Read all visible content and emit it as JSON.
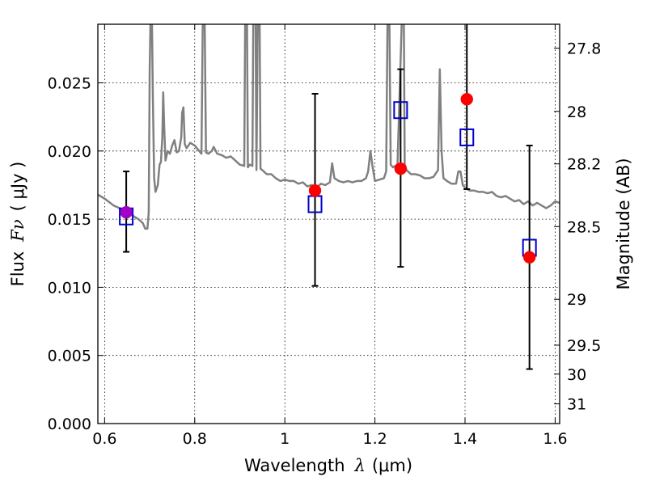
{
  "chart_data": {
    "type": "scatter",
    "title": "",
    "xlabel": "Wavelength",
    "xlabel_symbol": "λ",
    "xlabel_unit": "(μm)",
    "ylabel": "Flux",
    "ylabel_symbol": "Fν",
    "ylabel_unit": "( μJy )",
    "ylabel_right": "Magnitude (AB)",
    "xlim": [
      0.585,
      1.61
    ],
    "ylim": [
      0.0,
      0.0293
    ],
    "grid": true,
    "legend": "none",
    "x_ticks": [
      {
        "value": 0.6,
        "label": "0.6"
      },
      {
        "value": 0.8,
        "label": "0.8"
      },
      {
        "value": 1.0,
        "label": "1"
      },
      {
        "value": 1.2,
        "label": "1.2"
      },
      {
        "value": 1.4,
        "label": "1.4"
      },
      {
        "value": 1.6,
        "label": "1.6"
      }
    ],
    "y_ticks": [
      {
        "value": 0.0,
        "label": "0.000"
      },
      {
        "value": 0.005,
        "label": "0.005"
      },
      {
        "value": 0.01,
        "label": "0.010"
      },
      {
        "value": 0.015,
        "label": "0.015"
      },
      {
        "value": 0.02,
        "label": "0.020"
      },
      {
        "value": 0.025,
        "label": "0.025"
      }
    ],
    "right_ticks": [
      {
        "mag": 27.8,
        "label": "27.8"
      },
      {
        "mag": 28.0,
        "label": "28"
      },
      {
        "mag": 28.2,
        "label": "28.2"
      },
      {
        "mag": 28.5,
        "label": "28.5"
      },
      {
        "mag": 29.0,
        "label": "29"
      },
      {
        "mag": 29.5,
        "label": "29.5"
      },
      {
        "mag": 30.0,
        "label": "30"
      },
      {
        "mag": 31.0,
        "label": "31"
      }
    ],
    "colors": {
      "observed": "#ff0000",
      "model": "#0000cc",
      "spectrum": "#808080",
      "errorbar": "#000000",
      "overlap": "#a000c8"
    },
    "observed": [
      {
        "x": 0.648,
        "y": 0.0155,
        "yerr_low": 0.0126,
        "yerr_high": 0.0185
      },
      {
        "x": 1.067,
        "y": 0.0171,
        "yerr_low": 0.0101,
        "yerr_high": 0.0242
      },
      {
        "x": 1.257,
        "y": 0.0187,
        "yerr_low": 0.0115,
        "yerr_high": 0.026
      },
      {
        "x": 1.404,
        "y": 0.0238,
        "yerr_low": 0.0172,
        "yerr_high": 0.03
      },
      {
        "x": 1.543,
        "y": 0.0122,
        "yerr_low": 0.004,
        "yerr_high": 0.0204
      }
    ],
    "model": [
      {
        "x": 0.648,
        "y": 0.0152
      },
      {
        "x": 1.067,
        "y": 0.0161
      },
      {
        "x": 1.257,
        "y": 0.023
      },
      {
        "x": 1.404,
        "y": 0.021
      },
      {
        "x": 1.543,
        "y": 0.0129
      }
    ],
    "spectrum": [
      [
        0.585,
        0.0168
      ],
      [
        0.6,
        0.0165
      ],
      [
        0.62,
        0.016
      ],
      [
        0.64,
        0.0157
      ],
      [
        0.66,
        0.0153
      ],
      [
        0.675,
        0.015
      ],
      [
        0.685,
        0.0147
      ],
      [
        0.69,
        0.0143
      ],
      [
        0.695,
        0.0143
      ],
      [
        0.698,
        0.0155
      ],
      [
        0.7,
        0.026
      ],
      [
        0.702,
        0.03
      ],
      [
        0.705,
        0.03
      ],
      [
        0.707,
        0.024
      ],
      [
        0.71,
        0.018
      ],
      [
        0.713,
        0.017
      ],
      [
        0.718,
        0.0175
      ],
      [
        0.722,
        0.019
      ],
      [
        0.725,
        0.0192
      ],
      [
        0.728,
        0.021
      ],
      [
        0.73,
        0.0243
      ],
      [
        0.732,
        0.022
      ],
      [
        0.735,
        0.0193
      ],
      [
        0.74,
        0.02
      ],
      [
        0.745,
        0.0198
      ],
      [
        0.75,
        0.0204
      ],
      [
        0.755,
        0.0208
      ],
      [
        0.76,
        0.0199
      ],
      [
        0.765,
        0.02
      ],
      [
        0.77,
        0.021
      ],
      [
        0.772,
        0.0228
      ],
      [
        0.775,
        0.0232
      ],
      [
        0.778,
        0.0205
      ],
      [
        0.782,
        0.0202
      ],
      [
        0.79,
        0.0206
      ],
      [
        0.8,
        0.0204
      ],
      [
        0.81,
        0.02
      ],
      [
        0.815,
        0.0198
      ],
      [
        0.818,
        0.03
      ],
      [
        0.822,
        0.03
      ],
      [
        0.825,
        0.0199
      ],
      [
        0.83,
        0.0198
      ],
      [
        0.838,
        0.02
      ],
      [
        0.842,
        0.0203
      ],
      [
        0.85,
        0.0198
      ],
      [
        0.86,
        0.0197
      ],
      [
        0.87,
        0.0195
      ],
      [
        0.88,
        0.0196
      ],
      [
        0.89,
        0.0193
      ],
      [
        0.9,
        0.019
      ],
      [
        0.91,
        0.0189
      ],
      [
        0.912,
        0.03
      ],
      [
        0.916,
        0.03
      ],
      [
        0.918,
        0.0188
      ],
      [
        0.922,
        0.019
      ],
      [
        0.928,
        0.0189
      ],
      [
        0.93,
        0.03
      ],
      [
        0.935,
        0.03
      ],
      [
        0.937,
        0.0186
      ],
      [
        0.94,
        0.03
      ],
      [
        0.944,
        0.03
      ],
      [
        0.946,
        0.0187
      ],
      [
        0.95,
        0.0186
      ],
      [
        0.96,
        0.0183
      ],
      [
        0.97,
        0.0183
      ],
      [
        0.98,
        0.018
      ],
      [
        0.99,
        0.0178
      ],
      [
        1.0,
        0.0179
      ],
      [
        1.01,
        0.0178
      ],
      [
        1.02,
        0.0178
      ],
      [
        1.03,
        0.0176
      ],
      [
        1.04,
        0.0177
      ],
      [
        1.05,
        0.0174
      ],
      [
        1.06,
        0.0175
      ],
      [
        1.07,
        0.0173
      ],
      [
        1.08,
        0.0176
      ],
      [
        1.09,
        0.0175
      ],
      [
        1.1,
        0.0177
      ],
      [
        1.105,
        0.0191
      ],
      [
        1.11,
        0.018
      ],
      [
        1.12,
        0.0178
      ],
      [
        1.13,
        0.0177
      ],
      [
        1.14,
        0.0178
      ],
      [
        1.15,
        0.0177
      ],
      [
        1.16,
        0.0178
      ],
      [
        1.17,
        0.0178
      ],
      [
        1.18,
        0.018
      ],
      [
        1.185,
        0.0185
      ],
      [
        1.19,
        0.02
      ],
      [
        1.195,
        0.0188
      ],
      [
        1.2,
        0.0178
      ],
      [
        1.21,
        0.0179
      ],
      [
        1.22,
        0.018
      ],
      [
        1.225,
        0.0185
      ],
      [
        1.228,
        0.03
      ],
      [
        1.232,
        0.03
      ],
      [
        1.235,
        0.019
      ],
      [
        1.24,
        0.0188
      ],
      [
        1.25,
        0.019
      ],
      [
        1.26,
        0.03
      ],
      [
        1.264,
        0.03
      ],
      [
        1.266,
        0.019
      ],
      [
        1.27,
        0.0186
      ],
      [
        1.28,
        0.0183
      ],
      [
        1.29,
        0.0183
      ],
      [
        1.3,
        0.0182
      ],
      [
        1.31,
        0.018
      ],
      [
        1.32,
        0.018
      ],
      [
        1.33,
        0.0181
      ],
      [
        1.34,
        0.0186
      ],
      [
        1.344,
        0.026
      ],
      [
        1.348,
        0.02
      ],
      [
        1.352,
        0.018
      ],
      [
        1.36,
        0.0178
      ],
      [
        1.37,
        0.0176
      ],
      [
        1.38,
        0.0176
      ],
      [
        1.385,
        0.0185
      ],
      [
        1.39,
        0.0185
      ],
      [
        1.395,
        0.0175
      ],
      [
        1.4,
        0.0173
      ],
      [
        1.41,
        0.0171
      ],
      [
        1.42,
        0.0171
      ],
      [
        1.43,
        0.017
      ],
      [
        1.44,
        0.017
      ],
      [
        1.45,
        0.0169
      ],
      [
        1.46,
        0.017
      ],
      [
        1.47,
        0.0167
      ],
      [
        1.48,
        0.0166
      ],
      [
        1.49,
        0.0167
      ],
      [
        1.5,
        0.0165
      ],
      [
        1.51,
        0.0163
      ],
      [
        1.52,
        0.0164
      ],
      [
        1.53,
        0.0161
      ],
      [
        1.54,
        0.0163
      ],
      [
        1.55,
        0.016
      ],
      [
        1.56,
        0.0162
      ],
      [
        1.57,
        0.016
      ],
      [
        1.58,
        0.0158
      ],
      [
        1.59,
        0.016
      ],
      [
        1.6,
        0.0163
      ],
      [
        1.61,
        0.0162
      ]
    ]
  }
}
